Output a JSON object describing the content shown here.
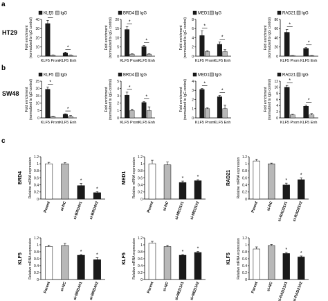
{
  "panel_labels": [
    "a",
    "b",
    "c"
  ],
  "row_labels": [
    "HT29",
    "SW48"
  ],
  "colors": {
    "dark": "#1a1a1a",
    "gray": "#b8b8b8",
    "white": "#ffffff",
    "axis": "#000000"
  },
  "chart_data": [
    {
      "type": "bar",
      "panel": "a",
      "row": "HT29",
      "legend_position": "top",
      "ylabel": "Fold enrichment (normalized to IgG control)",
      "categories": [
        "KLF5 Prom",
        "KLF5 Enh"
      ],
      "ylim": [
        0,
        40
      ],
      "yticks": [
        "0",
        "10",
        "20",
        "30",
        "40"
      ],
      "series": [
        {
          "name": "KLF5",
          "values": [
            35.5,
            3.5
          ],
          "errors": [
            3.5,
            0.8
          ]
        },
        {
          "name": "IgG",
          "values": [
            1.2,
            1.2
          ],
          "errors": [
            0.2,
            0.2
          ]
        }
      ],
      "annotations": [
        "*",
        "*"
      ]
    },
    {
      "type": "bar",
      "panel": "a",
      "row": "HT29",
      "legend_position": "top",
      "ylabel": "Fold enrichment (normalized to IgG control)",
      "categories": [
        "KLF5 Prom",
        "KLF5 Enh"
      ],
      "ylim": [
        0,
        20
      ],
      "yticks": [
        "0",
        "5",
        "10",
        "15",
        "20"
      ],
      "series": [
        {
          "name": "BRD4",
          "values": [
            14.5,
            5.2
          ],
          "errors": [
            1.5,
            0.6
          ]
        },
        {
          "name": "IgG",
          "values": [
            1.1,
            1.1
          ],
          "errors": [
            0.2,
            0.2
          ]
        }
      ],
      "annotations": [
        "*",
        "*"
      ]
    },
    {
      "type": "bar",
      "panel": "a",
      "row": "HT29",
      "legend_position": "top",
      "ylabel": "Fold enrichment (normalized to IgG control)",
      "categories": [
        "KLF5 Prom",
        "KLF5 Enh"
      ],
      "ylim": [
        0,
        8
      ],
      "yticks": [
        "0",
        "2",
        "4",
        "6",
        "8"
      ],
      "series": [
        {
          "name": "MED1",
          "values": [
            4.5,
            2.6
          ],
          "errors": [
            1.0,
            0.5
          ]
        },
        {
          "name": "IgG",
          "values": [
            1.0,
            1.0
          ],
          "errors": [
            0.2,
            0.4
          ]
        }
      ],
      "annotations": [
        "*",
        "*"
      ]
    },
    {
      "type": "bar",
      "panel": "a",
      "row": "HT29",
      "legend_position": "top",
      "ylabel": "Fold enrichment (normalized to IgG control)",
      "categories": [
        "KLF5 Prom",
        "KLF5 Enh"
      ],
      "ylim": [
        0,
        80
      ],
      "yticks": [
        "0",
        "20",
        "40",
        "60",
        "80"
      ],
      "series": [
        {
          "name": "RAD21",
          "values": [
            52,
            17
          ],
          "errors": [
            6,
            1.5
          ]
        },
        {
          "name": "IgG",
          "values": [
            1.5,
            1.5
          ],
          "errors": [
            0.3,
            0.3
          ]
        }
      ],
      "annotations": [
        "*",
        "*"
      ]
    },
    {
      "type": "bar",
      "panel": "b",
      "row": "SW48",
      "legend_position": "top",
      "ylabel": "Fold enrichment (normalized to IgG control)",
      "categories": [
        "KLF5 Prom",
        "KLF5 Enh"
      ],
      "ylim": [
        0,
        25
      ],
      "yticks": [
        "0",
        "5",
        "10",
        "15",
        "20",
        "25"
      ],
      "series": [
        {
          "name": "KLF5",
          "values": [
            19.5,
            2.5
          ],
          "errors": [
            1.5,
            0.3
          ]
        },
        {
          "name": "IgG",
          "values": [
            1.0,
            1.0
          ],
          "errors": [
            0.2,
            0.6
          ]
        }
      ],
      "annotations": [
        "*",
        "*"
      ]
    },
    {
      "type": "bar",
      "panel": "b",
      "row": "SW48",
      "legend_position": "top",
      "ylabel": "Fold enrichment (normalized to IgG control)",
      "categories": [
        "KLF5 Prom",
        "KLF5 Enh"
      ],
      "ylim": [
        0,
        5
      ],
      "yticks": [
        "0",
        "1",
        "2",
        "3",
        "4",
        "5"
      ],
      "series": [
        {
          "name": "BRD4",
          "values": [
            3.1,
            2.1
          ],
          "errors": [
            0.4,
            0.1
          ]
        },
        {
          "name": "IgG",
          "values": [
            1.0,
            1.0
          ],
          "errors": [
            0.2,
            0.5
          ]
        }
      ],
      "annotations": [
        "*",
        "*"
      ]
    },
    {
      "type": "bar",
      "panel": "b",
      "row": "SW48",
      "legend_position": "top",
      "ylabel": "Fold enrichment (normalized to IgG control)",
      "categories": [
        "KLF5 Prom",
        "KLF5 Enh"
      ],
      "ylim": [
        0,
        4
      ],
      "yticks": [
        "0",
        "1",
        "2",
        "3",
        "4"
      ],
      "series": [
        {
          "name": "MED1",
          "values": [
            3.1,
            2.3
          ],
          "errors": [
            0.1,
            0.15
          ]
        },
        {
          "name": "IgG",
          "values": [
            1.0,
            1.0
          ],
          "errors": [
            0.1,
            0.4
          ]
        }
      ],
      "annotations": [
        "*",
        "*"
      ]
    },
    {
      "type": "bar",
      "panel": "b",
      "row": "SW48",
      "legend_position": "top",
      "ylabel": "Fold enrichment (normalized to IgG control)",
      "categories": [
        "KLF5 Prom",
        "KLF5 Enh"
      ],
      "ylim": [
        0,
        12
      ],
      "yticks": [
        "0",
        "2",
        "4",
        "6",
        "8",
        "10",
        "12"
      ],
      "series": [
        {
          "name": "RAD21",
          "values": [
            10.0,
            3.8
          ],
          "errors": [
            0.6,
            0.4
          ]
        },
        {
          "name": "IgG",
          "values": [
            1.0,
            1.0
          ],
          "errors": [
            0.2,
            0.4
          ]
        }
      ],
      "annotations": [
        "*",
        "*"
      ]
    },
    {
      "type": "bar",
      "panel": "c",
      "side_label": "BRD4",
      "ylabel": "Relative mRNA expression",
      "categories": [
        "Parent",
        "si-NC",
        "si-BRD4#1",
        "si-BRD4#2"
      ],
      "values": [
        1.0,
        1.0,
        0.38,
        0.18
      ],
      "errors": [
        0.04,
        0.03,
        0.06,
        0.03
      ],
      "bar_fills": [
        "white",
        "gray",
        "dark",
        "dark"
      ],
      "ylim": [
        0,
        1.2
      ],
      "yticks": [
        "0",
        "0.2",
        "0.4",
        "0.6",
        "0.8",
        "1",
        "1.2"
      ],
      "annotations": [
        "",
        "",
        "*",
        "*"
      ]
    },
    {
      "type": "bar",
      "panel": "c",
      "side_label": "MED1",
      "ylabel": "Relative mRNA expression",
      "categories": [
        "Parent",
        "si-NC",
        "si-MED1#1",
        "si-MED1#2"
      ],
      "values": [
        1.0,
        0.97,
        0.47,
        0.52
      ],
      "errors": [
        0.1,
        0.08,
        0.04,
        0.03
      ],
      "bar_fills": [
        "white",
        "gray",
        "dark",
        "dark"
      ],
      "ylim": [
        0,
        1.2
      ],
      "yticks": [
        "0",
        "0.2",
        "0.4",
        "0.6",
        "0.8",
        "1",
        "1.2"
      ],
      "annotations": [
        "",
        "",
        "*",
        "*"
      ]
    },
    {
      "type": "bar",
      "panel": "c",
      "side_label": "RAD21",
      "ylabel": "Relative mRNA expression",
      "categories": [
        "Parent",
        "si-NC",
        "si-RAD21#1",
        "si-RAD21#2"
      ],
      "values": [
        1.08,
        1.0,
        0.4,
        0.55
      ],
      "errors": [
        0.05,
        0.02,
        0.05,
        0.05
      ],
      "bar_fills": [
        "white",
        "gray",
        "dark",
        "dark"
      ],
      "ylim": [
        0,
        1.2
      ],
      "yticks": [
        "0",
        "0.2",
        "0.4",
        "0.6",
        "0.8",
        "1",
        "1.2"
      ],
      "annotations": [
        "",
        "",
        "*",
        "*"
      ]
    },
    {
      "type": "bar",
      "panel": "c",
      "side_label": "KLF5",
      "ylabel": "Relative mRNA expression",
      "categories": [
        "Parent",
        "si-NC",
        "si-BRD4#1",
        "si-BRD4#2"
      ],
      "values": [
        0.95,
        0.98,
        0.7,
        0.57
      ],
      "errors": [
        0.04,
        0.06,
        0.02,
        0.06
      ],
      "bar_fills": [
        "white",
        "gray",
        "dark",
        "dark"
      ],
      "ylim": [
        0,
        1.2
      ],
      "yticks": [
        "0",
        "0.2",
        "0.4",
        "0.6",
        "0.8",
        "1",
        "1.2"
      ],
      "annotations": [
        "",
        "",
        "*",
        "*"
      ]
    },
    {
      "type": "bar",
      "panel": "c",
      "side_label": "KLF5",
      "ylabel": "Relative mRNA expression",
      "categories": [
        "Parent",
        "si-NC",
        "si-MED1#1",
        "si-MED1#2"
      ],
      "values": [
        1.05,
        0.95,
        0.7,
        0.78
      ],
      "errors": [
        0.05,
        0.04,
        0.02,
        0.03
      ],
      "bar_fills": [
        "white",
        "gray",
        "dark",
        "dark"
      ],
      "ylim": [
        0,
        1.2
      ],
      "yticks": [
        "0",
        "0.2",
        "0.4",
        "0.6",
        "0.8",
        "1",
        "1.2"
      ],
      "annotations": [
        "",
        "",
        "*",
        "*"
      ]
    },
    {
      "type": "bar",
      "panel": "c",
      "side_label": "KLF5",
      "ylabel": "Relative mRNA expression",
      "categories": [
        "Parent",
        "si-NC",
        "si-RAD21#1",
        "si-RAD21#2"
      ],
      "values": [
        0.88,
        0.98,
        0.75,
        0.65
      ],
      "errors": [
        0.06,
        0.03,
        0.03,
        0.03
      ],
      "bar_fills": [
        "white",
        "gray",
        "dark",
        "dark"
      ],
      "ylim": [
        0,
        1.2
      ],
      "yticks": [
        "0",
        "0.2",
        "0.4",
        "0.6",
        "0.8",
        "1",
        "1.2"
      ],
      "annotations": [
        "",
        "",
        "*",
        "*"
      ]
    }
  ]
}
